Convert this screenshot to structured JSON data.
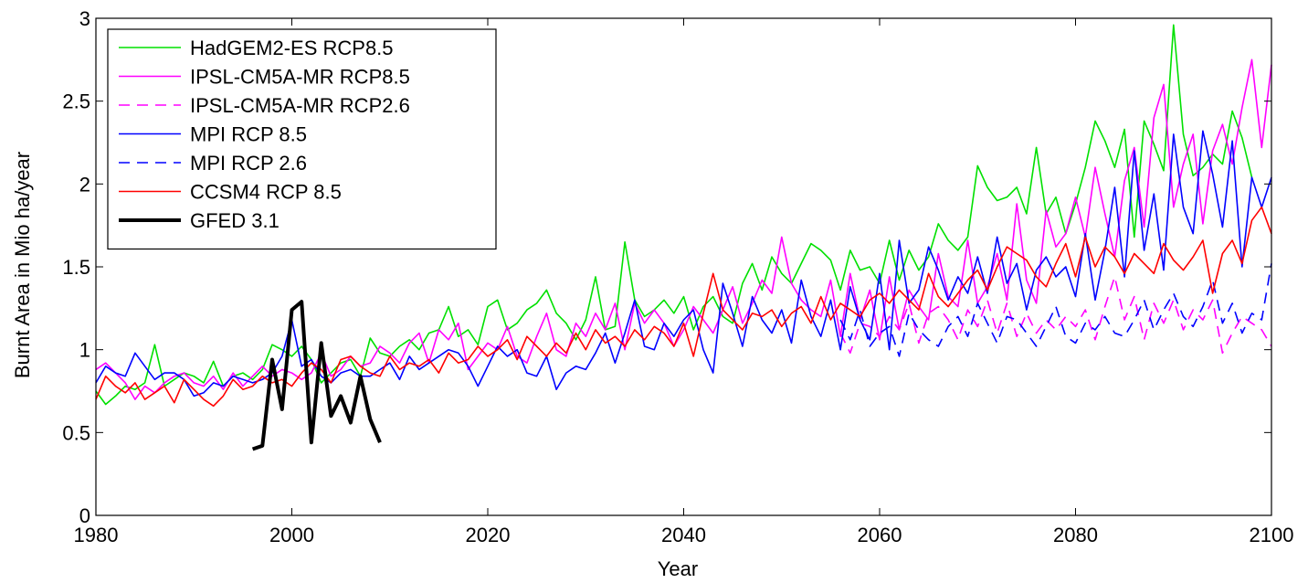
{
  "chart_data": {
    "type": "line",
    "title": "",
    "xlabel": "Year",
    "ylabel": "Burnt Area in Mio ha/year",
    "xlim": [
      1980,
      2100
    ],
    "ylim": [
      0,
      3
    ],
    "x_ticks": [
      1980,
      2000,
      2020,
      2040,
      2060,
      2080,
      2100
    ],
    "y_ticks": [
      0,
      0.5,
      1,
      1.5,
      2,
      2.5,
      3
    ],
    "x_tick_labels": [
      "1980",
      "2000",
      "2020",
      "2040",
      "2060",
      "2080",
      "2100"
    ],
    "y_tick_labels": [
      "0",
      "0.5",
      "1",
      "1.5",
      "2",
      "2.5",
      "3"
    ],
    "grid": false,
    "legend_position": "top-left",
    "series": [
      {
        "name": "HadGEM2-ES RCP8.5",
        "color": "#00e000",
        "dash": "solid",
        "width": 1.6,
        "x_start": 1980,
        "values": [
          0.75,
          0.67,
          0.72,
          0.78,
          0.76,
          0.8,
          1.03,
          0.78,
          0.82,
          0.86,
          0.84,
          0.8,
          0.93,
          0.78,
          0.84,
          0.86,
          0.82,
          0.88,
          1.03,
          1.0,
          0.96,
          1.02,
          0.94,
          0.8,
          0.86,
          0.92,
          0.94,
          0.84,
          1.07,
          0.98,
          0.96,
          1.02,
          1.06,
          1.0,
          1.1,
          1.12,
          1.26,
          1.08,
          1.12,
          1.03,
          1.26,
          1.3,
          1.12,
          1.16,
          1.24,
          1.28,
          1.36,
          1.22,
          1.16,
          1.06,
          1.18,
          1.44,
          1.12,
          1.14,
          1.65,
          1.3,
          1.2,
          1.24,
          1.3,
          1.22,
          1.32,
          1.12,
          1.26,
          1.32,
          1.2,
          1.16,
          1.4,
          1.52,
          1.36,
          1.56,
          1.46,
          1.4,
          1.52,
          1.64,
          1.6,
          1.54,
          1.36,
          1.6,
          1.48,
          1.5,
          1.4,
          1.66,
          1.42,
          1.6,
          1.48,
          1.56,
          1.76,
          1.66,
          1.6,
          1.68,
          2.11,
          1.98,
          1.9,
          1.92,
          1.98,
          1.82,
          2.22,
          1.82,
          1.92,
          1.7,
          1.88,
          2.1,
          2.38,
          2.26,
          2.1,
          2.33,
          1.68,
          2.38,
          2.24,
          2.08,
          2.96,
          2.3,
          2.05,
          2.1,
          2.18,
          2.12,
          2.44,
          2.28,
          2.04
        ]
      },
      {
        "name": "IPSL-CM5A-MR RCP8.5",
        "color": "#ff00ff",
        "dash": "solid",
        "width": 1.6,
        "x_start": 1980,
        "values": [
          0.88,
          0.92,
          0.86,
          0.8,
          0.7,
          0.78,
          0.74,
          0.8,
          0.84,
          0.86,
          0.8,
          0.78,
          0.84,
          0.76,
          0.86,
          0.78,
          0.84,
          0.9,
          0.84,
          0.88,
          0.86,
          0.82,
          0.86,
          0.98,
          0.84,
          0.88,
          0.96,
          0.9,
          0.92,
          1.02,
          0.98,
          0.92,
          1.04,
          1.1,
          0.92,
          1.12,
          1.06,
          1.16,
          0.88,
          0.96,
          1.04,
          1.0,
          1.14,
          0.96,
          0.92,
          1.08,
          1.22,
          1.0,
          0.96,
          1.16,
          1.08,
          1.22,
          1.12,
          1.28,
          1.0,
          1.28,
          1.16,
          1.24,
          1.16,
          1.02,
          1.12,
          1.26,
          1.18,
          1.1,
          1.24,
          1.38,
          1.16,
          1.28,
          1.42,
          1.34,
          1.68,
          1.4,
          1.3,
          1.24,
          1.2,
          1.42,
          1.08,
          1.46,
          1.18,
          1.36,
          1.06,
          1.44,
          1.12,
          1.36,
          1.26,
          1.18,
          1.58,
          1.32,
          1.26,
          1.66,
          1.28,
          1.38,
          1.58,
          1.3,
          1.88,
          1.42,
          1.28,
          1.84,
          1.62,
          1.7,
          1.92,
          1.68,
          2.1,
          1.82,
          1.56,
          2.02,
          2.22,
          1.74,
          2.4,
          2.6,
          1.86,
          2.12,
          2.3,
          1.76,
          2.2,
          2.36,
          2.12,
          2.46,
          2.75,
          2.22,
          2.72
        ]
      },
      {
        "name": "IPSL-CM5A-MR RCP2.6",
        "color": "#ff00ff",
        "dash": "dashed",
        "width": 1.6,
        "x_start": 2056,
        "values": [
          1.1,
          0.98,
          1.16,
          1.14,
          1.08,
          1.2,
          1.12,
          1.28,
          1.04,
          1.22,
          1.26,
          1.18,
          1.06,
          1.24,
          1.14,
          1.3,
          1.1,
          1.28,
          1.08,
          1.22,
          1.1,
          1.18,
          1.12,
          1.2,
          1.14,
          1.24,
          1.06,
          1.26,
          1.44,
          1.18,
          1.32,
          1.06,
          1.28,
          1.16,
          1.3,
          1.12,
          1.24,
          1.18,
          1.3,
          0.98,
          1.1,
          1.2,
          1.16,
          1.12,
          1.02
        ]
      },
      {
        "name": "MPI RCP 8.5",
        "color": "#0000ff",
        "dash": "solid",
        "width": 1.6,
        "x_start": 1980,
        "values": [
          0.8,
          0.9,
          0.86,
          0.84,
          0.98,
          0.9,
          0.82,
          0.86,
          0.86,
          0.82,
          0.72,
          0.74,
          0.8,
          0.78,
          0.84,
          0.82,
          0.8,
          0.82,
          0.86,
          0.96,
          1.18,
          0.9,
          0.94,
          0.84,
          0.8,
          0.86,
          0.88,
          0.84,
          0.84,
          0.88,
          0.92,
          0.82,
          0.96,
          0.88,
          0.92,
          0.96,
          1.0,
          0.98,
          0.9,
          0.78,
          0.9,
          1.02,
          0.96,
          1.0,
          0.86,
          0.84,
          0.96,
          0.76,
          0.86,
          0.9,
          0.88,
          0.98,
          1.1,
          0.92,
          1.1,
          1.3,
          1.02,
          1.0,
          1.16,
          1.08,
          1.18,
          1.24,
          1.0,
          0.86,
          1.4,
          1.22,
          1.02,
          1.32,
          1.18,
          1.1,
          1.24,
          1.04,
          1.42,
          1.2,
          1.08,
          1.3,
          1.0,
          1.38,
          1.18,
          1.06,
          1.46,
          1.0,
          1.66,
          1.28,
          1.36,
          1.62,
          1.48,
          1.3,
          1.44,
          1.34,
          1.56,
          1.34,
          1.68,
          1.4,
          1.52,
          1.24,
          1.48,
          1.56,
          1.44,
          1.5,
          1.32,
          1.7,
          1.3,
          1.6,
          1.98,
          1.44,
          2.2,
          1.6,
          1.94,
          1.48,
          2.3,
          1.86,
          1.7,
          2.32,
          2.06,
          1.74,
          2.26,
          1.5,
          2.04,
          1.86,
          2.04
        ]
      },
      {
        "name": "MPI RCP 2.6",
        "color": "#0000ff",
        "dash": "dashed",
        "width": 1.6,
        "x_start": 2056,
        "values": [
          1.18,
          1.06,
          1.24,
          1.02,
          1.1,
          1.14,
          0.96,
          1.22,
          1.12,
          1.06,
          1.02,
          1.14,
          1.2,
          1.08,
          1.28,
          1.16,
          1.04,
          1.2,
          1.18,
          1.1,
          1.02,
          1.14,
          1.26,
          1.08,
          1.04,
          1.16,
          1.12,
          1.2,
          1.1,
          1.08,
          1.18,
          1.3,
          1.12,
          1.24,
          1.34,
          1.2,
          1.14,
          1.26,
          1.42,
          1.16,
          1.28,
          1.1,
          1.22,
          1.18,
          1.52
        ]
      },
      {
        "name": "CCSM4 RCP 8.5",
        "color": "#ff0000",
        "dash": "solid",
        "width": 1.6,
        "x_start": 1980,
        "values": [
          0.7,
          0.84,
          0.78,
          0.74,
          0.8,
          0.7,
          0.74,
          0.78,
          0.68,
          0.82,
          0.76,
          0.7,
          0.66,
          0.72,
          0.82,
          0.76,
          0.78,
          0.84,
          0.8,
          0.82,
          0.78,
          0.86,
          0.92,
          0.88,
          0.8,
          0.94,
          0.96,
          0.9,
          0.86,
          0.84,
          0.96,
          0.88,
          0.92,
          0.9,
          0.94,
          0.86,
          0.98,
          0.92,
          0.94,
          1.02,
          0.96,
          1.0,
          1.06,
          0.94,
          1.08,
          1.02,
          0.96,
          1.04,
          0.98,
          1.1,
          1.0,
          1.12,
          1.04,
          1.08,
          1.02,
          1.12,
          1.06,
          1.14,
          1.1,
          1.02,
          1.16,
          0.96,
          1.22,
          1.46,
          1.24,
          1.18,
          1.12,
          1.22,
          1.2,
          1.24,
          1.14,
          1.22,
          1.26,
          1.16,
          1.32,
          1.18,
          1.28,
          1.24,
          1.2,
          1.3,
          1.34,
          1.28,
          1.36,
          1.3,
          1.24,
          1.46,
          1.32,
          1.26,
          1.34,
          1.42,
          1.48,
          1.36,
          1.5,
          1.62,
          1.58,
          1.54,
          1.44,
          1.38,
          1.52,
          1.64,
          1.44,
          1.68,
          1.5,
          1.62,
          1.56,
          1.46,
          1.58,
          1.52,
          1.46,
          1.64,
          1.54,
          1.48,
          1.56,
          1.66,
          1.34,
          1.58,
          1.66,
          1.52,
          1.78,
          1.86,
          1.7
        ]
      },
      {
        "name": "GFED 3.1",
        "color": "#000000",
        "dash": "solid",
        "width": 4,
        "x_start": 1996,
        "values": [
          0.4,
          0.42,
          0.94,
          0.64,
          1.24,
          1.29,
          0.44,
          1.04,
          0.6,
          0.72,
          0.56,
          0.84,
          0.58,
          0.44
        ]
      }
    ]
  }
}
